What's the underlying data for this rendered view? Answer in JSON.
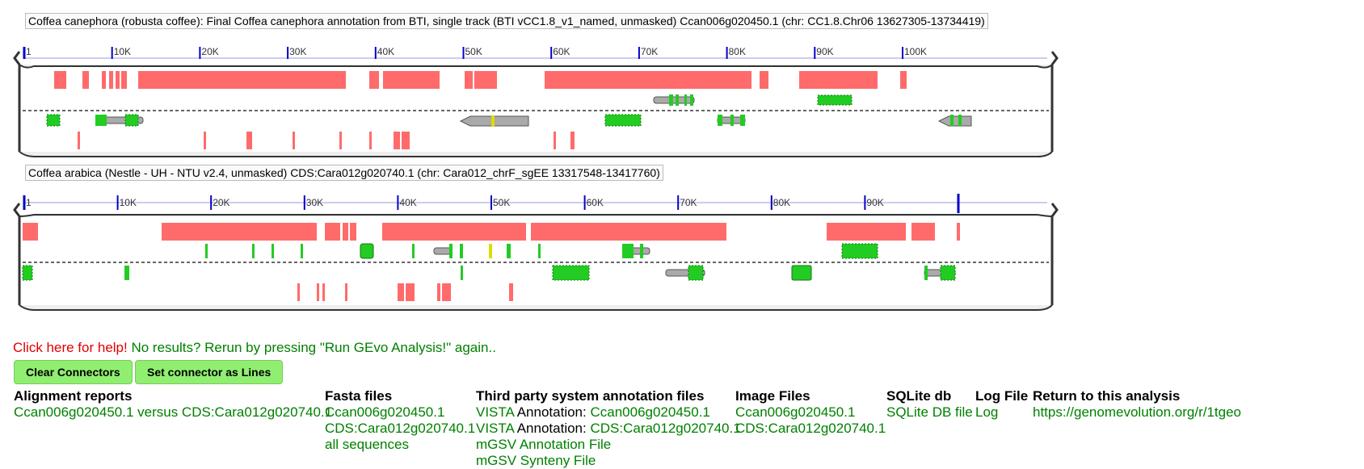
{
  "panels": [
    {
      "caption": "Coffea canephora (robusta coffee): Final Coffea canephora annotation from BTI, single track (BTI vCC1.8_v1_named, unmasked) Ccan006g020450.1 (chr: CC1.8.Chr06 13627305-13734419)",
      "ruler_ticks": [
        "1",
        "10K",
        "20K",
        "30K",
        "40K",
        "50K",
        "60K",
        "70K",
        "80K",
        "90K",
        "100K"
      ]
    },
    {
      "caption": "Coffea arabica (Nestle - UH - NTU v2.4, unmasked) CDS:Cara012g020740.1 (chr: Cara012_chrF_sgEE 13317548-13417760)",
      "ruler_ticks": [
        "1",
        "10K",
        "20K",
        "30K",
        "40K",
        "50K",
        "60K",
        "70K",
        "80K",
        "90K"
      ]
    }
  ],
  "message": {
    "help": "Click here for help!",
    "rerun": " No results? Rerun by pressing \"Run GEvo Analysis!\" again.."
  },
  "buttons": {
    "clear": "Clear Connectors",
    "lines": "Set connector as Lines"
  },
  "results": {
    "alignment": {
      "title": "Alignment reports",
      "links": [
        "Ccan006g020450.1 versus CDS:Cara012g020740.1"
      ]
    },
    "fasta": {
      "title": "Fasta files",
      "links": [
        "Ccan006g020450.1",
        "CDS:Cara012g020740.1",
        "all sequences"
      ]
    },
    "third_party": {
      "title": "Third party system annotation files",
      "vista_label": "VISTA",
      "vista_mid": " Annotation: ",
      "vista_files": [
        "Ccan006g020450.1",
        "CDS:Cara012g020740.1"
      ],
      "mgsv_annotation": "mGSV Annotation File",
      "mgsv_synteny": "mGSV Synteny File"
    },
    "image": {
      "title": "Image Files",
      "links": [
        "Ccan006g020450.1",
        "CDS:Cara012g020740.1"
      ]
    },
    "sqlite": {
      "title": "SQLite db",
      "link": "SQLite DB file"
    },
    "log": {
      "title": "Log File",
      "link": "Log"
    },
    "return": {
      "title": "Return to this analysis",
      "link": "https://genomevolution.org/r/1tgeo"
    }
  },
  "colors": {
    "hsp_red": "#ff6b6b",
    "exon_green": "#22cc22",
    "tick_blue": "#0000cc",
    "link_green": "#008000",
    "help_red": "#e00000",
    "button_green": "#90ee70"
  }
}
